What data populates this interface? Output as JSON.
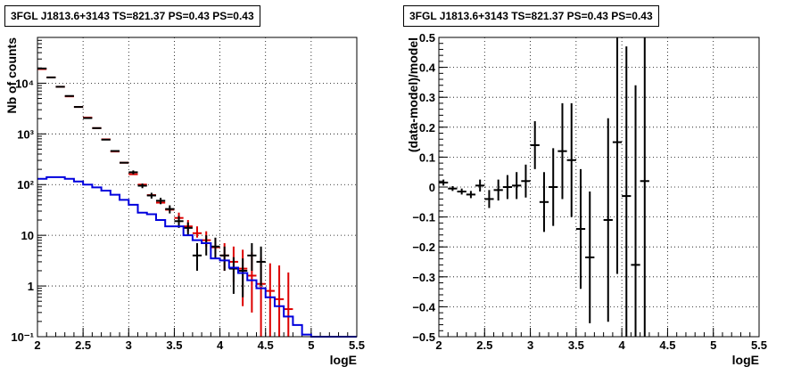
{
  "chart_data": [
    {
      "type": "histogram",
      "title": "3FGL J1813.6+3143 TS=821.37 PS=0.43 PS=0.43",
      "xlabel": "logE",
      "ylabel": "Nb of counts",
      "xlim": [
        2,
        5.5
      ],
      "ylim": [
        0.1,
        80000
      ],
      "yscale": "log",
      "grid": true,
      "xticks": [
        2,
        2.5,
        3,
        3.5,
        4,
        4.5,
        5,
        5.5
      ],
      "xtick_labels": [
        "2",
        "2.5",
        "3",
        "3.5",
        "4",
        "4.5",
        "5",
        "5.5"
      ],
      "yticks": [
        0.1,
        1,
        10,
        100,
        1000,
        10000
      ],
      "ytick_labels": [
        "10⁻¹",
        "1",
        "10",
        "10²",
        "10³",
        "10⁴"
      ],
      "colors": {
        "data": "#000000",
        "model_total": "#dd0000",
        "model_source": "#0000dd"
      },
      "series": [
        {
          "role": "model_total",
          "x": [
            2.05,
            2.15,
            2.25,
            2.35,
            2.45,
            2.55,
            2.65,
            2.75,
            2.85,
            2.95,
            3.05,
            3.15,
            3.25,
            3.35,
            3.45,
            3.55,
            3.65,
            3.75,
            3.85,
            3.95,
            4.05,
            4.15,
            4.25,
            4.35,
            4.45,
            4.55,
            4.65,
            4.75
          ],
          "y": [
            19000,
            13000,
            8500,
            5500,
            3400,
            2100,
            1300,
            780,
            450,
            270,
            160,
            100,
            62,
            44,
            32,
            22,
            15,
            11,
            8,
            5.8,
            4,
            3,
            2.2,
            1.6,
            1.1,
            0.8,
            0.55,
            0.35
          ],
          "err": [
            0,
            0,
            0,
            0,
            0,
            0,
            0,
            0,
            0,
            0,
            0,
            0,
            0,
            0,
            0,
            0,
            0,
            0,
            0,
            0,
            0,
            0,
            0,
            0,
            0,
            0,
            0,
            0
          ],
          "err_lo": [
            0,
            0,
            0,
            0,
            0,
            0,
            0,
            0,
            0,
            0,
            0,
            0,
            0,
            0,
            0,
            0,
            3,
            2,
            2,
            1.5,
            2,
            1.8,
            1.8,
            1.3,
            1.0,
            0.75,
            0.52,
            0.34
          ],
          "err_hi": [
            0,
            0,
            0,
            0,
            0,
            0,
            0,
            0,
            0,
            0,
            0,
            0,
            0,
            0,
            0,
            6,
            5,
            4,
            4,
            3,
            3,
            3,
            3,
            3,
            2.5,
            2,
            2,
            1.5
          ]
        },
        {
          "role": "data",
          "x": [
            2.05,
            2.15,
            2.25,
            2.35,
            2.45,
            2.55,
            2.65,
            2.75,
            2.85,
            2.95,
            3.05,
            3.15,
            3.25,
            3.35,
            3.45,
            3.55,
            3.65,
            3.75,
            3.85,
            3.95,
            4.05,
            4.15,
            4.25,
            4.35,
            4.45
          ],
          "y": [
            19500,
            13000,
            8500,
            5600,
            3400,
            2050,
            1300,
            770,
            460,
            270,
            175,
            95,
            61,
            48,
            33,
            19,
            14,
            4,
            7,
            6,
            4,
            2.2,
            2,
            4,
            3
          ],
          "err_lo": [
            0,
            0,
            0,
            0,
            0,
            0,
            0,
            0,
            0,
            0,
            15,
            10,
            8,
            7,
            6,
            5,
            4,
            2,
            3,
            2.5,
            2,
            1.5,
            1.4,
            2,
            2
          ],
          "err_hi": [
            0,
            0,
            0,
            0,
            0,
            0,
            0,
            0,
            0,
            0,
            15,
            10,
            8,
            7,
            6,
            5,
            4,
            3,
            3,
            3,
            2,
            1.5,
            1.5,
            3,
            3
          ]
        },
        {
          "role": "model_source",
          "x": [
            2.05,
            2.15,
            2.25,
            2.35,
            2.45,
            2.55,
            2.65,
            2.75,
            2.85,
            2.95,
            3.05,
            3.15,
            3.25,
            3.35,
            3.45,
            3.55,
            3.65,
            3.75,
            3.85,
            3.95,
            4.05,
            4.15,
            4.25,
            4.35,
            4.45,
            4.55,
            4.65,
            4.75,
            4.85,
            4.95,
            5.05,
            5.15,
            5.25,
            5.35,
            5.45
          ],
          "y": [
            130,
            140,
            140,
            130,
            115,
            100,
            88,
            76,
            63,
            50,
            40,
            28,
            26,
            20,
            15,
            15,
            10,
            8,
            7,
            3.5,
            3.2,
            2.3,
            1.8,
            1.3,
            0.9,
            0.6,
            0.4,
            0.25,
            0.17,
            0.11,
            0.1,
            0.1,
            0.1,
            0.1,
            0.1
          ]
        }
      ]
    },
    {
      "type": "scatter_errorbars",
      "title": "3FGL J1813.6+3143 TS=821.37 PS=0.43 PS=0.43",
      "xlabel": "logE",
      "ylabel": "(data-model)/model",
      "xlim": [
        2,
        5.5
      ],
      "ylim": [
        -0.5,
        0.5
      ],
      "grid": true,
      "xticks": [
        2,
        2.5,
        3,
        3.5,
        4,
        4.5,
        5,
        5.5
      ],
      "xtick_labels": [
        "2",
        "2.5",
        "3",
        "3.5",
        "4",
        "4.5",
        "5",
        "5.5"
      ],
      "yticks": [
        -0.5,
        -0.4,
        -0.3,
        -0.2,
        -0.1,
        0,
        0.1,
        0.2,
        0.3,
        0.4,
        0.5
      ],
      "ytick_labels": [
        "−0.5",
        "−0.4",
        "−0.3",
        "−0.2",
        "−0.1",
        "0",
        "0.1",
        "0.2",
        "0.3",
        "0.4",
        "0.5"
      ],
      "series": [
        {
          "role": "residuals",
          "x": [
            2.05,
            2.15,
            2.25,
            2.35,
            2.45,
            2.55,
            2.65,
            2.75,
            2.85,
            2.95,
            3.05,
            3.15,
            3.25,
            3.35,
            3.45,
            3.55,
            3.65,
            3.85,
            3.95,
            4.05,
            4.15,
            4.25
          ],
          "y": [
            0.015,
            -0.005,
            -0.015,
            -0.025,
            0.005,
            -0.04,
            -0.01,
            0,
            0.005,
            0.02,
            0.14,
            -0.05,
            0,
            0.12,
            0.09,
            -0.14,
            -0.235,
            -0.11,
            0.15,
            -0.03,
            -0.26,
            0.02
          ],
          "err": [
            0.01,
            0.008,
            0.01,
            0.012,
            0.02,
            0.03,
            0.035,
            0.04,
            0.045,
            0.055,
            0.08,
            0.1,
            0.13,
            0.16,
            0.19,
            0.2,
            0.22,
            0.34,
            0.44,
            0.5,
            0.6,
            0.7
          ]
        }
      ]
    }
  ]
}
